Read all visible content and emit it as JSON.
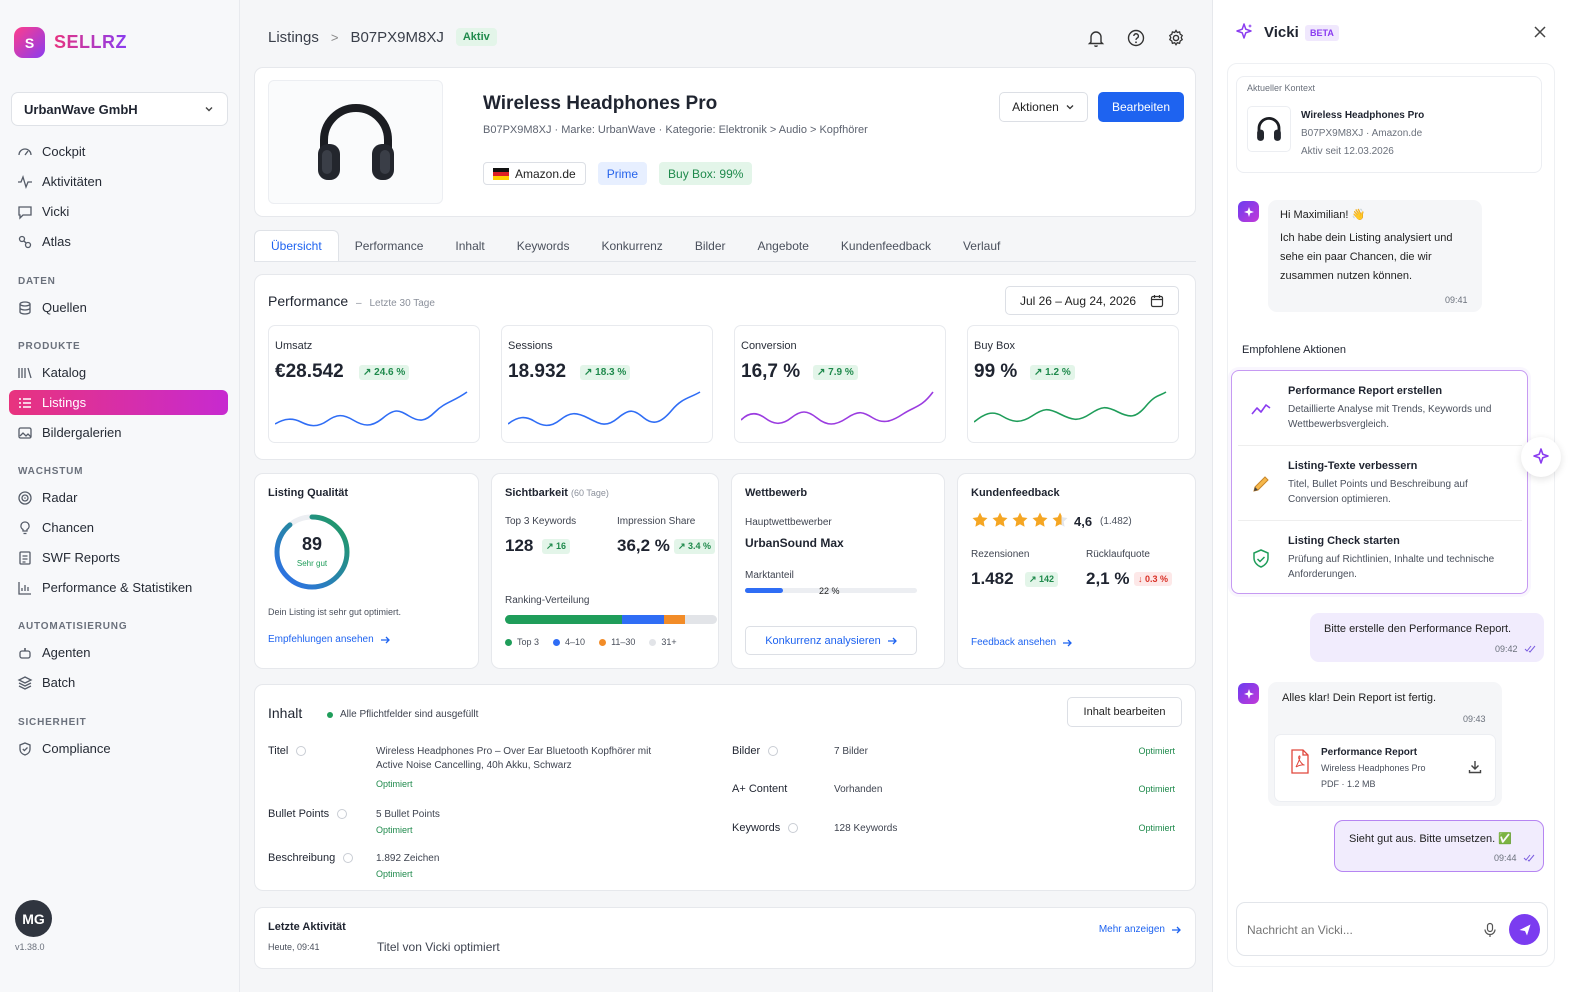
{
  "app": {
    "logo_letter": "S",
    "name": "SELLRZ",
    "version": "v1.38.0",
    "user_initials": "MG"
  },
  "sidebar": {
    "company": "UrbanWave GmbH",
    "items_top": [
      {
        "label": "Cockpit",
        "icon": "gauge-icon"
      },
      {
        "label": "Aktivitäten",
        "icon": "activity-icon"
      },
      {
        "label": "Vicki",
        "icon": "chat-icon"
      },
      {
        "label": "Atlas",
        "icon": "atlas-icon"
      }
    ],
    "sections": [
      {
        "title": "DATEN",
        "items": [
          {
            "label": "Quellen",
            "icon": "database-icon"
          }
        ]
      },
      {
        "title": "PRODUKTE",
        "items": [
          {
            "label": "Katalog",
            "icon": "catalog-icon"
          },
          {
            "label": "Listings",
            "icon": "list-icon",
            "active": true
          },
          {
            "label": "Bildergalerien",
            "icon": "gallery-icon"
          }
        ]
      },
      {
        "title": "WACHSTUM",
        "items": [
          {
            "label": "Radar",
            "icon": "radar-icon"
          },
          {
            "label": "Chancen",
            "icon": "lightbulb-icon"
          },
          {
            "label": "SWF Reports",
            "icon": "report-icon"
          },
          {
            "label": "Performance & Statistiken",
            "icon": "bar-chart-icon"
          }
        ]
      },
      {
        "title": "AUTOMATISIERUNG",
        "items": [
          {
            "label": "Agenten",
            "icon": "robot-icon"
          },
          {
            "label": "Batch",
            "icon": "layers-icon"
          }
        ]
      },
      {
        "title": "SICHERHEIT",
        "items": [
          {
            "label": "Compliance",
            "icon": "shield-icon"
          }
        ]
      }
    ]
  },
  "header": {
    "crumb_root": "Listings",
    "crumb_sep": ">",
    "crumb_id": "B07PX9M8XJ",
    "status": "Aktiv"
  },
  "product": {
    "title": "Wireless Headphones Pro",
    "meta": "B07PX9M8XJ  ·  Marke: UrbanWave  ·  Kategorie: Elektronik > Audio > Kopfhörer",
    "marketplace": "Amazon.de",
    "prime": "Prime",
    "buybox": "Buy Box: 99%",
    "actions_label": "Aktionen",
    "edit_label": "Bearbeiten"
  },
  "tabs": [
    "Übersicht",
    "Performance",
    "Inhalt",
    "Keywords",
    "Konkurrenz",
    "Bilder",
    "Angebote",
    "Kundenfeedback",
    "Verlauf"
  ],
  "performance": {
    "title": "Performance",
    "sep": "–",
    "range_note": "Letzte 30 Tage",
    "date_range": "Jul 26 – Aug 24, 2026",
    "metrics": [
      {
        "label": "Umsatz",
        "value": "€28.542",
        "delta": "↗ 24.6 %",
        "color": "#2f6df5"
      },
      {
        "label": "Sessions",
        "value": "18.932",
        "delta": "↗ 18.3 %",
        "color": "#2f6df5"
      },
      {
        "label": "Conversion",
        "value": "16,7 %",
        "delta": "↗ 7.9 %",
        "color": "#9b3ce0"
      },
      {
        "label": "Buy Box",
        "value": "99 %",
        "delta": "↗ 1.2 %",
        "color": "#1f9d5a"
      }
    ]
  },
  "quality": {
    "title": "Listing Qualität",
    "score": "89",
    "score_value": 89,
    "score_label": "Sehr gut",
    "note": "Dein Listing ist sehr gut optimiert.",
    "link": "Empfehlungen ansehen"
  },
  "visibility": {
    "title": "Sichtbarkeit",
    "period": "(60 Tage)",
    "kw_label": "Top 3 Keywords",
    "kw_value": "128",
    "kw_delta": "↗ 16",
    "is_label": "Impression Share",
    "is_value": "36,2 %",
    "is_delta": "↗ 3.4 %",
    "dist_label": "Ranking-Verteilung",
    "dist": [
      {
        "label": "Top 3",
        "color": "#1f9d5a",
        "share": 0.55
      },
      {
        "label": "4–10",
        "color": "#2f6df5",
        "share": 0.2
      },
      {
        "label": "11–30",
        "color": "#f28c28",
        "share": 0.1
      },
      {
        "label": "31+",
        "color": "#e2e4e8",
        "share": 0.15
      }
    ]
  },
  "competition": {
    "title": "Wettbewerb",
    "main_label": "Hauptwettbewerber",
    "main_value": "UrbanSound Max",
    "share_label": "Marktanteil",
    "share_value": "22 %",
    "share": 0.22,
    "button": "Konkurrenz analysieren"
  },
  "feedback": {
    "title": "Kundenfeedback",
    "rating": "4,6",
    "count": "(1.482)",
    "stars": 4.6,
    "rev_label": "Rezensionen",
    "rev_value": "1.482",
    "rev_delta": "↗ 142",
    "ret_label": "Rücklaufquote",
    "ret_value": "2,1 %",
    "ret_delta": "↓ 0.3 %",
    "link": "Feedback ansehen"
  },
  "content": {
    "title": "Inhalt",
    "status": "Alle Pflichtfelder sind ausgefüllt",
    "edit": "Inhalt bearbeiten",
    "left": [
      {
        "label": "Titel",
        "value": "Wireless Headphones Pro – Over Ear Bluetooth Kopfhörer mit Active Noise Cancelling, 40h Akku, Schwarz",
        "state": "Optimiert"
      },
      {
        "label": "Bullet Points",
        "value": "5 Bullet Points",
        "state": "Optimiert"
      },
      {
        "label": "Beschreibung",
        "value": "1.892 Zeichen",
        "state": "Optimiert"
      }
    ],
    "right": [
      {
        "label": "Bilder",
        "value": "7 Bilder",
        "state": "Optimiert"
      },
      {
        "label": "A+ Content",
        "value": "Vorhanden",
        "state": "Optimiert"
      },
      {
        "label": "Keywords",
        "value": "128 Keywords",
        "state": "Optimiert"
      }
    ]
  },
  "activity": {
    "title": "Letzte Aktivität",
    "time": "Heute, 09:41",
    "text": "Titel von Vicki optimiert",
    "more": "Mehr anzeigen"
  },
  "vicki": {
    "title": "Vicki",
    "beta": "BETA",
    "context_label": "Aktueller Kontext",
    "context_title": "Wireless Headphones Pro",
    "context_meta": "B07PX9M8XJ  ·  Amazon.de",
    "context_since": "Aktiv seit 12.03.2026",
    "msg1_greet": "Hi Maximilian! 👋",
    "msg1_text": "Ich habe dein Listing analysiert und sehe ein paar Chancen, die wir zusammen nutzen können.",
    "msg1_time": "09:41",
    "actions_title": "Empfohlene Aktionen",
    "actions": [
      {
        "title": "Performance Report erstellen",
        "desc": "Detaillierte Analyse mit Trends, Keywords und Wettbewerbsvergleich."
      },
      {
        "title": "Listing-Texte verbessern",
        "desc": "Titel, Bullet Points und Beschreibung auf Conversion optimieren."
      },
      {
        "title": "Listing Check starten",
        "desc": "Prüfung auf Richtlinien, Inhalte und technische Anforderungen."
      }
    ],
    "msg2_text": "Bitte erstelle den Performance Report.",
    "msg2_time": "09:42",
    "msg3_text": "Alles klar! Dein Report ist fertig.",
    "msg3_time": "09:43",
    "file_title": "Performance Report",
    "file_sub": "Wireless Headphones Pro",
    "file_meta": "PDF  ·  1.2 MB",
    "msg4_text": "Sieht gut aus. Bitte umsetzen. ✅",
    "msg4_time": "09:44",
    "input_placeholder": "Nachricht an Vicki..."
  }
}
